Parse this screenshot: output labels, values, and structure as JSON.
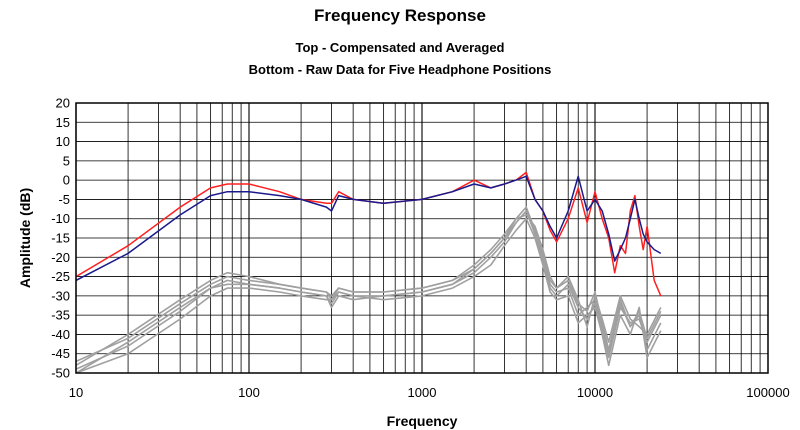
{
  "chart_data": {
    "type": "line",
    "title": "Frequency Response",
    "subtitle": [
      "Top -  Compensated and Averaged",
      "Bottom - Raw Data for Five Headphone Positions"
    ],
    "xlabel": "Frequency",
    "ylabel": "Amplitude (dB)",
    "xscale": "log",
    "xlim": [
      10,
      100000
    ],
    "ylim": [
      -50,
      20
    ],
    "x_ticks": [
      "10",
      "100",
      "1000",
      "10000",
      "100000"
    ],
    "y_ticks": [
      "20",
      "15",
      "10",
      "5",
      "0",
      "-5",
      "-10",
      "-15",
      "-20",
      "-25",
      "-30",
      "-35",
      "-40",
      "-45",
      "-50"
    ],
    "grid": true,
    "legend": "none",
    "colors": {
      "red": "#ff2020",
      "blue": "#1a1a8c",
      "gray": "#a0a0a0"
    },
    "series": [
      {
        "color": "red",
        "x": [
          10,
          20,
          40,
          60,
          75,
          100,
          150,
          200,
          280,
          300,
          330,
          400,
          600,
          1000,
          1500,
          2000,
          2500,
          3000,
          3500,
          4000,
          4500,
          5000,
          5500,
          6000,
          7000,
          8000,
          9000,
          10000,
          11000,
          12000,
          13000,
          14000,
          15000,
          16000,
          17000,
          18000,
          19000,
          20000,
          22000,
          24000
        ],
        "y": [
          -25,
          -17,
          -7,
          -2,
          -1,
          -1,
          -3,
          -5,
          -6,
          -6,
          -3,
          -5,
          -6,
          -5,
          -3,
          0,
          -2,
          -1,
          0,
          2,
          -5,
          -8,
          -13,
          -16,
          -10,
          -2,
          -11,
          -3,
          -10,
          -15,
          -24,
          -17,
          -19,
          -8,
          -4,
          -12,
          -18,
          -12,
          -26,
          -30
        ]
      },
      {
        "color": "blue",
        "x": [
          10,
          20,
          40,
          60,
          75,
          100,
          150,
          200,
          280,
          300,
          330,
          400,
          600,
          1000,
          1500,
          2000,
          2500,
          3000,
          3500,
          4000,
          4500,
          5000,
          5500,
          6000,
          7000,
          8000,
          9000,
          10000,
          11000,
          12000,
          13000,
          14000,
          15000,
          16000,
          17000,
          18000,
          19000,
          20000,
          22000,
          24000
        ],
        "y": [
          -26,
          -19,
          -9,
          -4,
          -3,
          -3,
          -4,
          -5,
          -7,
          -8,
          -4,
          -5,
          -6,
          -5,
          -3,
          -1,
          -2,
          -1,
          0,
          1,
          -5,
          -8,
          -12,
          -15,
          -8,
          1,
          -8,
          -5,
          -8,
          -14,
          -21,
          -18,
          -15,
          -10,
          -5,
          -10,
          -14,
          -16,
          -18,
          -19
        ]
      },
      {
        "color": "gray",
        "x": [
          10,
          20,
          40,
          60,
          75,
          100,
          150,
          200,
          280,
          300,
          330,
          400,
          600,
          1000,
          1500,
          2000,
          2500,
          3000,
          3500,
          4000,
          4500,
          5000,
          5500,
          6000,
          7000,
          8000,
          9000,
          10000,
          11000,
          12000,
          14000,
          16000,
          18000,
          20000,
          24000
        ],
        "y": [
          -50,
          -42,
          -33,
          -28,
          -26,
          -27,
          -28,
          -29,
          -30,
          -32,
          -29,
          -30,
          -30,
          -29,
          -27,
          -24,
          -20,
          -16,
          -11,
          -8,
          -13,
          -20,
          -27,
          -29,
          -28,
          -35,
          -33,
          -31,
          -38,
          -45,
          -32,
          -38,
          -35,
          -44,
          -37
        ]
      },
      {
        "color": "gray",
        "x": [
          10,
          20,
          40,
          60,
          75,
          100,
          150,
          200,
          280,
          300,
          330,
          400,
          600,
          1000,
          1500,
          2000,
          2500,
          3000,
          3500,
          4000,
          4500,
          5000,
          5500,
          6000,
          7000,
          8000,
          9000,
          10000,
          11000,
          12000,
          14000,
          16000,
          18000,
          20000,
          24000
        ],
        "y": [
          -48,
          -40,
          -31,
          -26,
          -24,
          -25,
          -27,
          -28,
          -29,
          -30,
          -28,
          -29,
          -29,
          -28,
          -26,
          -22,
          -18,
          -14,
          -10,
          -9,
          -12,
          -18,
          -25,
          -28,
          -25,
          -31,
          -38,
          -30,
          -36,
          -42,
          -30,
          -36,
          -38,
          -40,
          -33
        ]
      },
      {
        "color": "gray",
        "x": [
          10,
          20,
          40,
          60,
          75,
          100,
          150,
          200,
          280,
          300,
          330,
          400,
          600,
          1000,
          1500,
          2000,
          2500,
          3000,
          3500,
          4000,
          4500,
          5000,
          5500,
          6000,
          7000,
          8000,
          9000,
          10000,
          11000,
          12000,
          14000,
          16000,
          18000,
          20000,
          24000
        ],
        "y": [
          -50,
          -45,
          -36,
          -30,
          -28,
          -28,
          -29,
          -30,
          -31,
          -31,
          -29,
          -30,
          -31,
          -30,
          -28,
          -25,
          -22,
          -17,
          -13,
          -10,
          -15,
          -22,
          -29,
          -31,
          -30,
          -37,
          -35,
          -33,
          -40,
          -48,
          -35,
          -40,
          -33,
          -46,
          -39
        ]
      },
      {
        "color": "gray",
        "x": [
          10,
          20,
          40,
          60,
          75,
          100,
          150,
          200,
          280,
          300,
          330,
          400,
          600,
          1000,
          1500,
          2000,
          2500,
          3000,
          3500,
          4000,
          4500,
          5000,
          5500,
          6000,
          7000,
          8000,
          9000,
          10000,
          11000,
          12000,
          14000,
          16000,
          18000,
          20000,
          24000
        ],
        "y": [
          -49,
          -43,
          -34,
          -28,
          -27,
          -27,
          -28,
          -29,
          -30,
          -33,
          -30,
          -31,
          -30,
          -29,
          -27,
          -23,
          -19,
          -15,
          -11,
          -8,
          -14,
          -21,
          -28,
          -30,
          -27,
          -33,
          -36,
          -32,
          -39,
          -46,
          -33,
          -37,
          -36,
          -42,
          -35
        ]
      },
      {
        "color": "gray",
        "x": [
          10,
          20,
          40,
          60,
          75,
          100,
          150,
          200,
          280,
          300,
          330,
          400,
          600,
          1000,
          1500,
          2000,
          2500,
          3000,
          3500,
          4000,
          4500,
          5000,
          5500,
          6000,
          7000,
          8000,
          9000,
          10000,
          11000,
          12000,
          14000,
          16000,
          18000,
          20000,
          24000
        ],
        "y": [
          -47,
          -41,
          -32,
          -27,
          -25,
          -26,
          -27,
          -28,
          -29,
          -31,
          -28,
          -29,
          -29,
          -28,
          -26,
          -23,
          -19,
          -15,
          -10,
          -7,
          -13,
          -19,
          -26,
          -28,
          -26,
          -32,
          -34,
          -29,
          -37,
          -44,
          -31,
          -38,
          -34,
          -41,
          -34
        ]
      }
    ]
  }
}
